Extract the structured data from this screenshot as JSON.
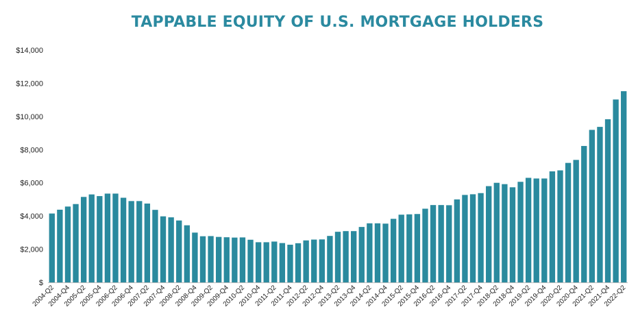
{
  "chart_data": {
    "type": "bar",
    "title": "TAPPABLE EQUITY OF U.S. MORTGAGE HOLDERS",
    "xlabel": "",
    "ylabel": "",
    "ylim": [
      0,
      14000
    ],
    "y_ticks": [
      {
        "value": 0,
        "label": "$"
      },
      {
        "value": 2000,
        "label": "$2,000"
      },
      {
        "value": 4000,
        "label": "$4,000"
      },
      {
        "value": 6000,
        "label": "$6,000"
      },
      {
        "value": 8000,
        "label": "$8,000"
      },
      {
        "value": 10000,
        "label": "$10,000"
      },
      {
        "value": 12000,
        "label": "$12,000"
      },
      {
        "value": 14000,
        "label": "$14,000"
      }
    ],
    "grid": false,
    "legend": "none",
    "bar_color": "#2a8a9e",
    "categories": [
      "2004-Q2",
      "2004-Q3",
      "2004-Q4",
      "2005-Q1",
      "2005-Q2",
      "2005-Q3",
      "2005-Q4",
      "2006-Q1",
      "2006-Q2",
      "2006-Q3",
      "2006-Q4",
      "2007-Q1",
      "2007-Q2",
      "2007-Q3",
      "2007-Q4",
      "2008-Q1",
      "2008-Q2",
      "2008-Q3",
      "2008-Q4",
      "2009-Q1",
      "2009-Q2",
      "2009-Q3",
      "2009-Q4",
      "2010-Q1",
      "2010-Q2",
      "2010-Q3",
      "2010-Q4",
      "2011-Q1",
      "2011-Q2",
      "2011-Q3",
      "2011-Q4",
      "2012-Q1",
      "2012-Q2",
      "2012-Q3",
      "2012-Q4",
      "2013-Q1",
      "2013-Q2",
      "2013-Q3",
      "2013-Q4",
      "2014-Q1",
      "2014-Q2",
      "2014-Q3",
      "2014-Q4",
      "2015-Q1",
      "2015-Q2",
      "2015-Q3",
      "2015-Q4",
      "2016-Q1",
      "2016-Q2",
      "2016-Q3",
      "2016-Q4",
      "2017-Q1",
      "2017-Q2",
      "2017-Q3",
      "2017-Q4",
      "2018-Q1",
      "2018-Q2",
      "2018-Q3",
      "2018-Q4",
      "2019-Q1",
      "2019-Q2",
      "2019-Q3",
      "2019-Q4",
      "2020-Q1",
      "2020-Q2",
      "2020-Q3",
      "2020-Q4",
      "2021-Q1",
      "2021-Q2",
      "2021-Q3",
      "2021-Q4",
      "2022-Q1",
      "2022-Q2"
    ],
    "x_tick_labels": [
      "2004-Q2",
      "2004-Q4",
      "2005-Q2",
      "2005-Q4",
      "2006-Q2",
      "2006-Q4",
      "2007-Q2",
      "2007-Q4",
      "2008-Q2",
      "2008-Q4",
      "2009-Q2",
      "2009-Q4",
      "2010-Q2",
      "2010-Q4",
      "2011-Q2",
      "2011-Q4",
      "2012-Q2",
      "2012-Q4",
      "2013-Q2",
      "2013-Q4",
      "2014-Q2",
      "2014-Q4",
      "2015-Q2",
      "2015-Q4",
      "2016-Q2",
      "2016-Q4",
      "2017-Q2",
      "2017-Q4",
      "2018-Q2",
      "2018-Q4",
      "2019-Q2",
      "2019-Q4",
      "2020-Q2",
      "2020-Q4",
      "2021-Q2",
      "2021-Q4",
      "2022-Q2"
    ],
    "values": [
      4150,
      4380,
      4570,
      4720,
      5150,
      5300,
      5200,
      5350,
      5350,
      5100,
      4900,
      4900,
      4750,
      4370,
      3980,
      3920,
      3730,
      3440,
      3000,
      2780,
      2790,
      2740,
      2720,
      2700,
      2710,
      2570,
      2420,
      2420,
      2460,
      2370,
      2270,
      2360,
      2530,
      2580,
      2590,
      2800,
      3050,
      3090,
      3090,
      3340,
      3560,
      3560,
      3540,
      3830,
      4080,
      4100,
      4120,
      4440,
      4660,
      4660,
      4650,
      5000,
      5270,
      5310,
      5380,
      5800,
      6000,
      5920,
      5730,
      6060,
      6300,
      6260,
      6260,
      6690,
      6750,
      7200,
      7380,
      8220,
      9190,
      9370,
      9830,
      11020,
      11520
    ]
  }
}
